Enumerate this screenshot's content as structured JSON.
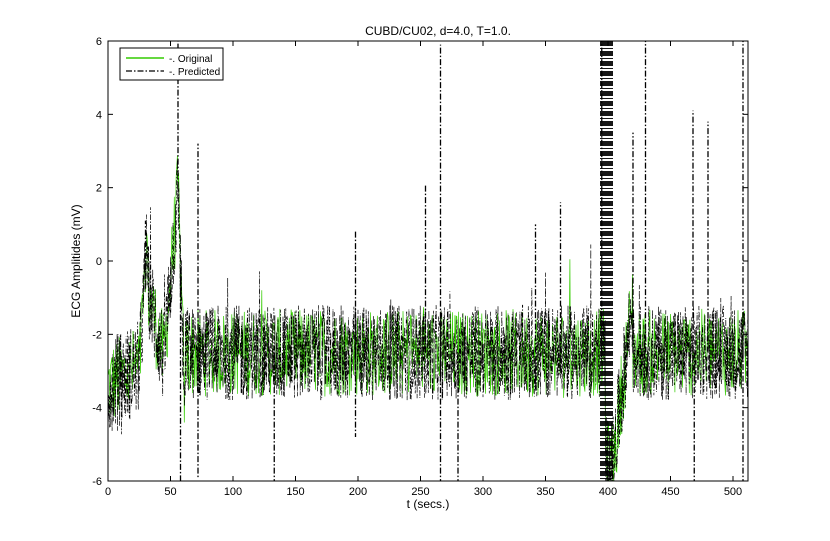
{
  "chart_data": {
    "type": "line",
    "title": "CUBD/CU02, d=4.0, T=1.0.",
    "xlabel": "t (secs.)",
    "ylabel": "ECG Amplitides (mV)",
    "xlim": [
      0,
      512
    ],
    "ylim": [
      -6,
      6
    ],
    "xticks": [
      0,
      50,
      100,
      150,
      200,
      250,
      300,
      350,
      400,
      450,
      500
    ],
    "yticks": [
      -6,
      -4,
      -2,
      0,
      2,
      4,
      6
    ],
    "grid": false,
    "legend_position": "top-left",
    "series": [
      {
        "name": "-. Original",
        "color": "#33cc00",
        "linestyle": "solid",
        "baseline": -2.5,
        "amplitude_band": 1.2,
        "sample_step": 0.5
      },
      {
        "name": "-. Predicted",
        "color": "#000000",
        "linestyle": "dashdot",
        "baseline": -2.5,
        "amplitude_band": 1.3,
        "sample_step": 0.25,
        "notable_spikes": [
          {
            "t": 30,
            "v": 1.1
          },
          {
            "t": 56,
            "v": 6.0
          },
          {
            "t": 58,
            "v": -6.0
          },
          {
            "t": 72,
            "v": 3.2
          },
          {
            "t": 72,
            "v": -5.9
          },
          {
            "t": 133,
            "v": -6.0
          },
          {
            "t": 198,
            "v": 0.8
          },
          {
            "t": 198,
            "v": -4.8
          },
          {
            "t": 254,
            "v": 2.1
          },
          {
            "t": 266,
            "v": 5.9
          },
          {
            "t": 266,
            "v": -6.0
          },
          {
            "t": 280,
            "v": -6.0
          },
          {
            "t": 342,
            "v": 1.0
          },
          {
            "t": 362,
            "v": 1.6
          },
          {
            "t": 395,
            "v": 6.0
          },
          {
            "t": 400,
            "v": -6.0
          },
          {
            "t": 420,
            "v": 3.5
          },
          {
            "t": 430,
            "v": 6.0
          },
          {
            "t": 468,
            "v": 4.1
          },
          {
            "t": 469,
            "v": -6.0
          },
          {
            "t": 480,
            "v": 3.8
          },
          {
            "t": 508,
            "v": 6.0
          },
          {
            "t": 508,
            "v": -6.0
          }
        ]
      }
    ]
  }
}
